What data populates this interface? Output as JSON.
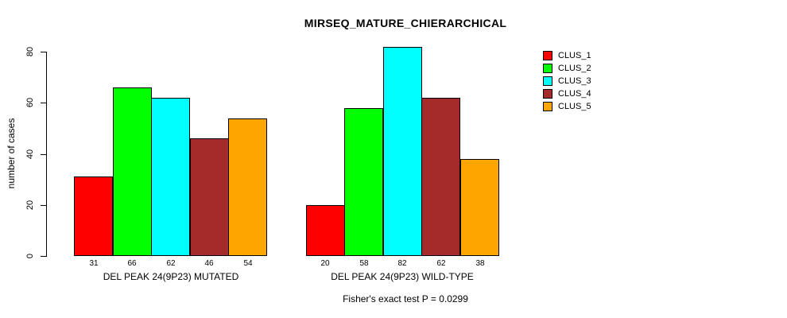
{
  "chart_data": {
    "type": "bar",
    "title": "MIRSEQ_MATURE_CHIERARCHICAL",
    "ylabel": "number of cases",
    "xlabel": "",
    "ylim": [
      0,
      80
    ],
    "yticks": [
      0,
      20,
      40,
      60,
      80
    ],
    "grid": false,
    "legend_position": "right",
    "bar_value_labels_shown": true,
    "categories": [
      "DEL PEAK 24(9P23) MUTATED",
      "DEL PEAK 24(9P23) WILD-TYPE"
    ],
    "series": [
      {
        "name": "CLUS_1",
        "color": "#FF0000",
        "values": [
          31,
          20
        ]
      },
      {
        "name": "CLUS_2",
        "color": "#00FF00",
        "values": [
          66,
          58
        ]
      },
      {
        "name": "CLUS_3",
        "color": "#00FFFF",
        "values": [
          62,
          82
        ]
      },
      {
        "name": "CLUS_4",
        "color": "#A52A2A",
        "values": [
          46,
          62
        ]
      },
      {
        "name": "CLUS_5",
        "color": "#FFA500",
        "values": [
          54,
          38
        ]
      }
    ],
    "annotation": "Fisher's exact test P = 0.0299"
  }
}
